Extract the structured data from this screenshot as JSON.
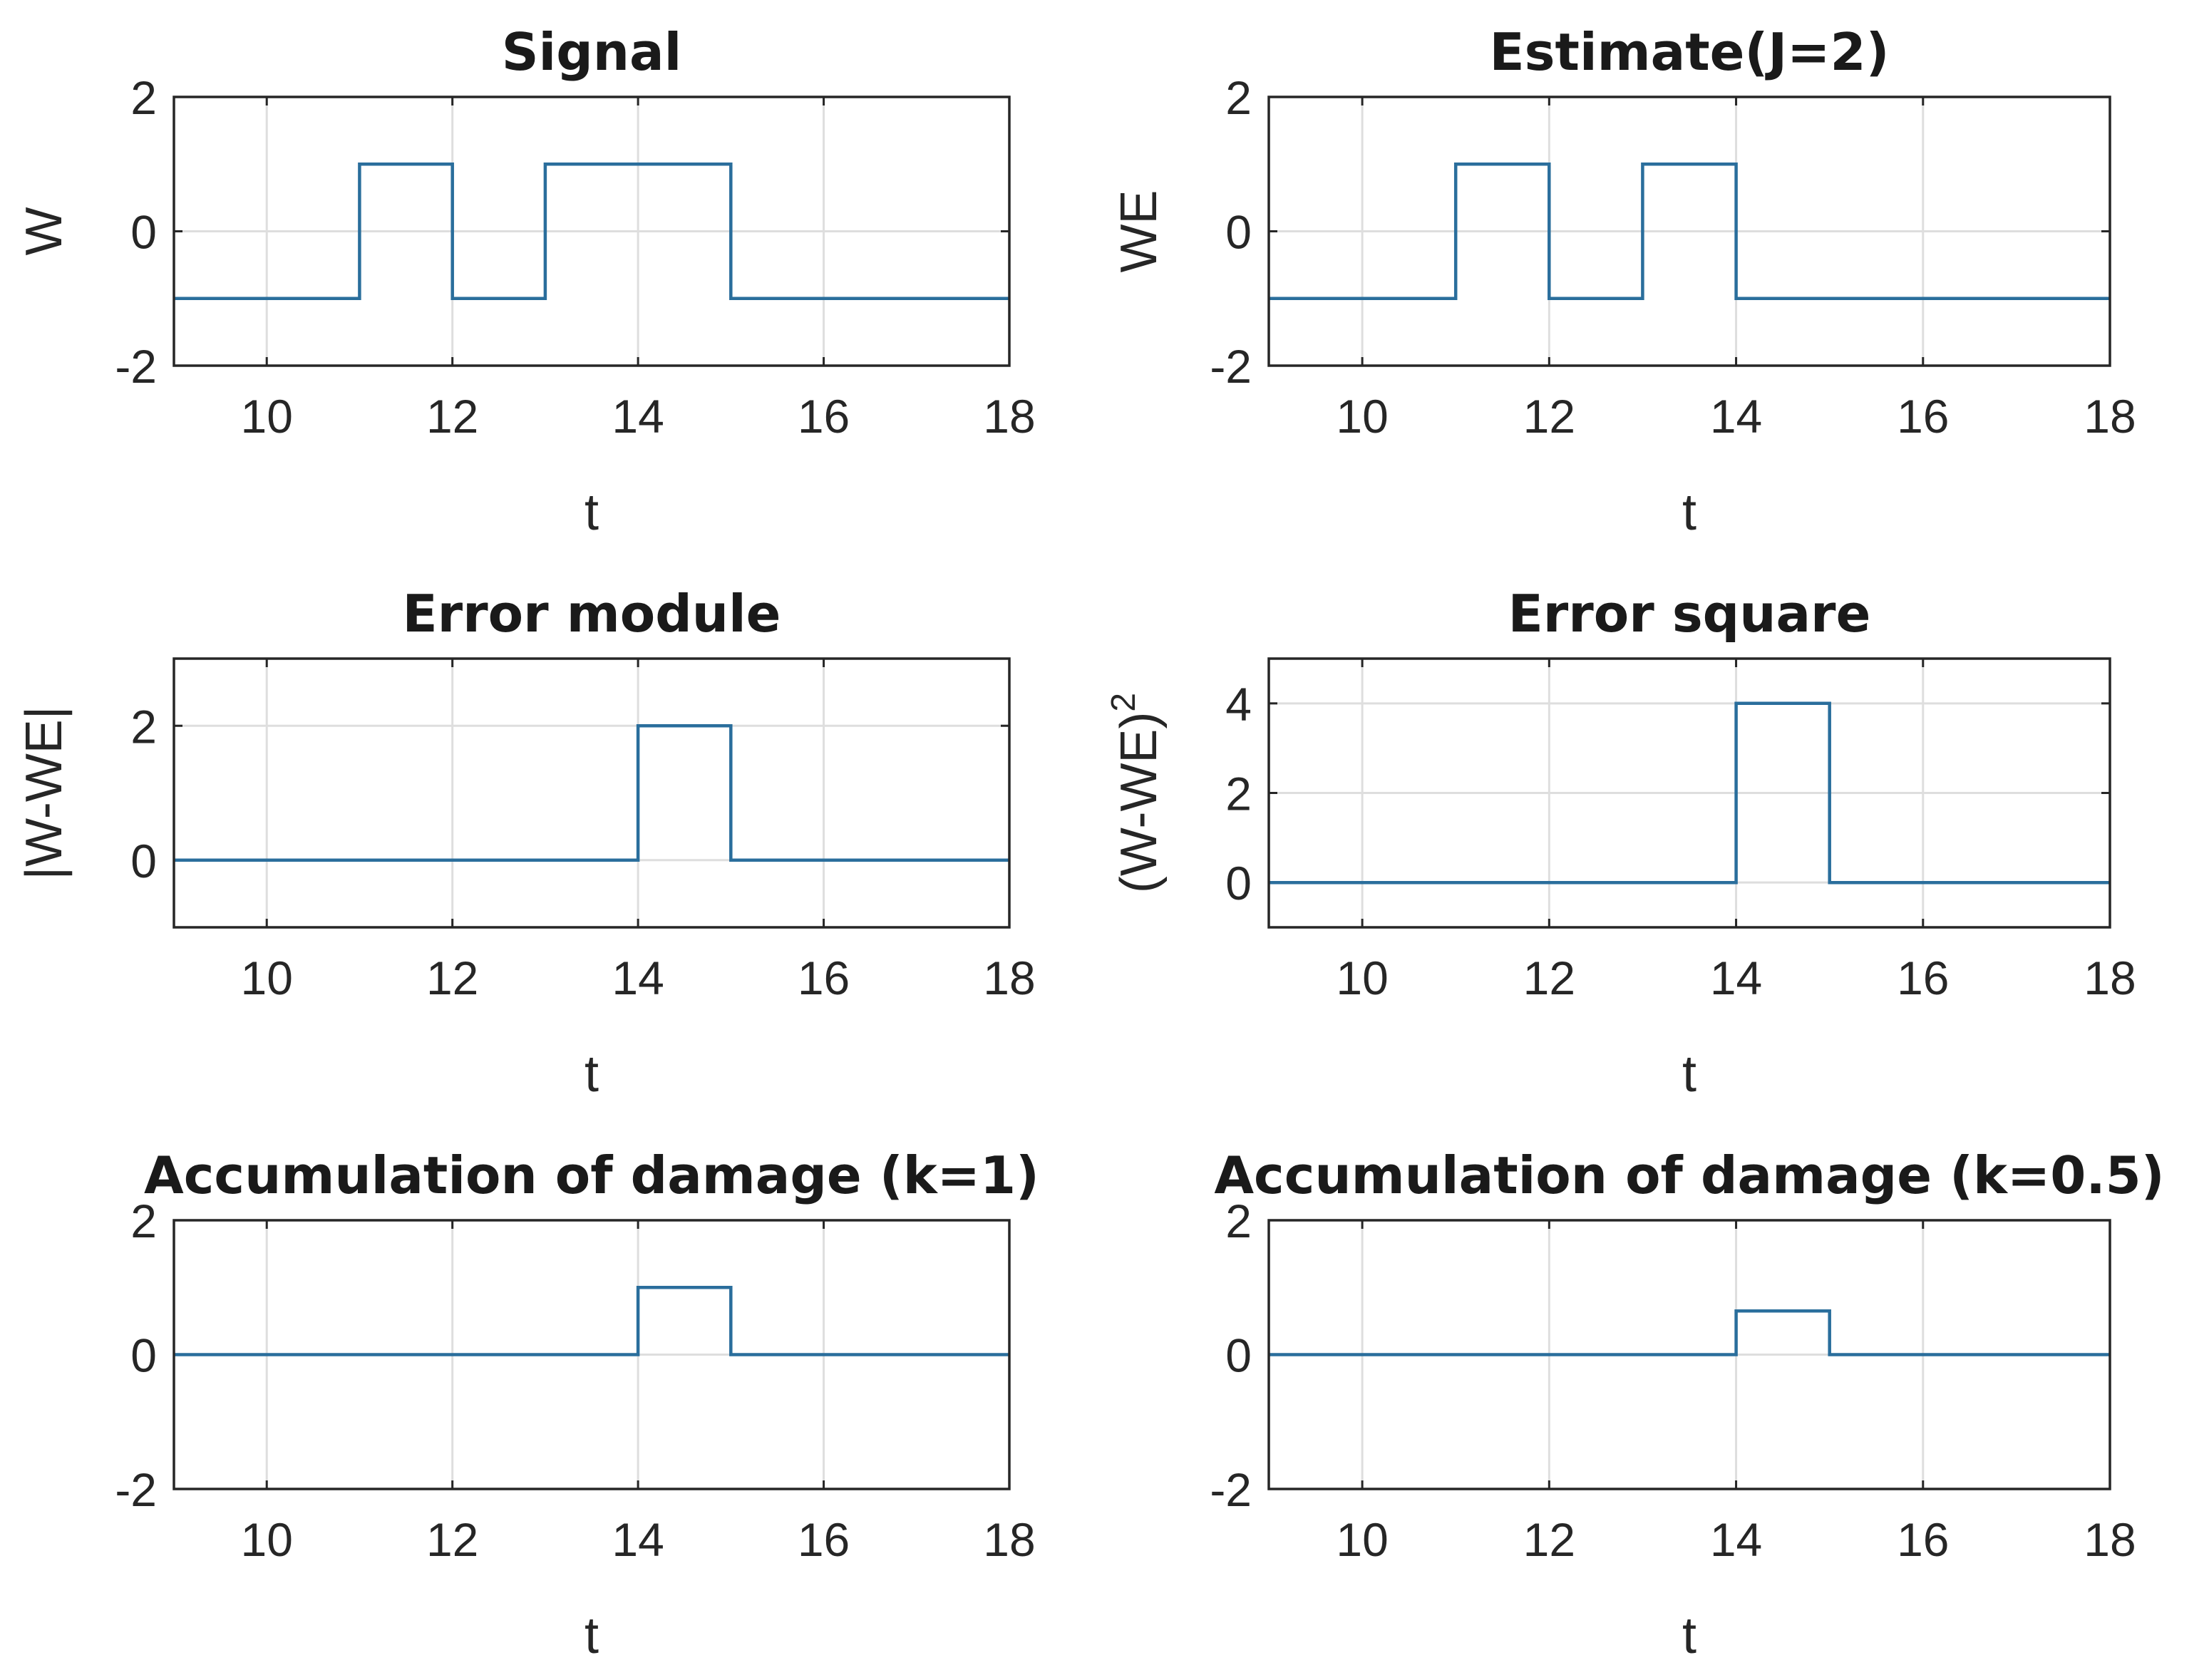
{
  "figure": {
    "line_color": "#2a6e9c",
    "grid_color": "#dedede",
    "axis_color": "#262626",
    "background": "#ffffff"
  },
  "chart_data": [
    {
      "type": "line",
      "step": true,
      "title": "Signal",
      "xlabel": "t",
      "ylabel": "W",
      "xlim": [
        9,
        18
      ],
      "ylim": [
        -2,
        2
      ],
      "xticks": [
        10,
        12,
        14,
        16,
        18
      ],
      "yticks": [
        -2,
        0,
        2
      ],
      "grid": true,
      "x": [
        9,
        11,
        11,
        12,
        12,
        13,
        13,
        15,
        15,
        18
      ],
      "y": [
        -1,
        -1,
        1,
        1,
        -1,
        -1,
        1,
        1,
        -1,
        -1
      ]
    },
    {
      "type": "line",
      "step": true,
      "title": "Estimate(J=2)",
      "xlabel": "t",
      "ylabel": "WE",
      "xlim": [
        9,
        18
      ],
      "ylim": [
        -2,
        2
      ],
      "xticks": [
        10,
        12,
        14,
        16,
        18
      ],
      "yticks": [
        -2,
        0,
        2
      ],
      "grid": true,
      "x": [
        9,
        11,
        11,
        12,
        12,
        13,
        13,
        14,
        14,
        18
      ],
      "y": [
        -1,
        -1,
        1,
        1,
        -1,
        -1,
        1,
        1,
        -1,
        -1
      ]
    },
    {
      "type": "line",
      "step": true,
      "title": "Error module",
      "xlabel": "t",
      "ylabel": "|W-WE|",
      "xlim": [
        9,
        18
      ],
      "ylim": [
        -1,
        3
      ],
      "xticks": [
        10,
        12,
        14,
        16,
        18
      ],
      "yticks": [
        0,
        2
      ],
      "grid": true,
      "x": [
        9,
        14,
        14,
        15,
        15,
        18
      ],
      "y": [
        0,
        0,
        2,
        2,
        0,
        0
      ]
    },
    {
      "type": "line",
      "step": true,
      "title": "Error square",
      "xlabel": "t",
      "ylabel": "(W-WE)",
      "ylabel_sup": "2",
      "xlim": [
        9,
        18
      ],
      "ylim": [
        -1,
        5
      ],
      "xticks": [
        10,
        12,
        14,
        16,
        18
      ],
      "yticks": [
        0,
        2,
        4
      ],
      "grid": true,
      "x": [
        9,
        14,
        14,
        15,
        15,
        18
      ],
      "y": [
        0,
        0,
        4,
        4,
        0,
        0
      ]
    },
    {
      "type": "line",
      "step": true,
      "title": "Accumulation of damage (k=1)",
      "xlabel": "t",
      "ylabel": "",
      "xlim": [
        9,
        18
      ],
      "ylim": [
        -2,
        2
      ],
      "xticks": [
        10,
        12,
        14,
        16,
        18
      ],
      "yticks": [
        -2,
        0,
        2
      ],
      "grid": true,
      "x": [
        9,
        14,
        14,
        15,
        15,
        18
      ],
      "y": [
        0,
        0,
        1,
        1,
        0,
        0
      ]
    },
    {
      "type": "line",
      "step": true,
      "title": "Accumulation of damage (k=0.5)",
      "xlabel": "t",
      "ylabel": "",
      "xlim": [
        9,
        18
      ],
      "ylim": [
        -2,
        2
      ],
      "xticks": [
        10,
        12,
        14,
        16,
        18
      ],
      "yticks": [
        -2,
        0,
        2
      ],
      "grid": true,
      "x": [
        9,
        14,
        14,
        15,
        15,
        18
      ],
      "y": [
        0,
        0,
        0.65,
        0.65,
        0,
        0
      ]
    }
  ]
}
